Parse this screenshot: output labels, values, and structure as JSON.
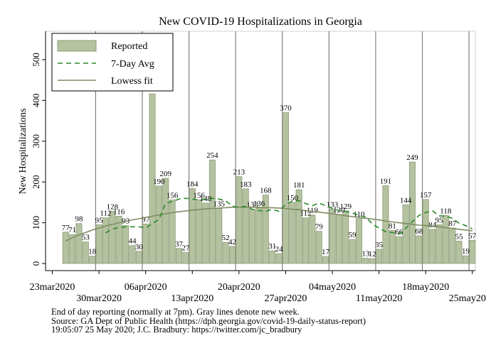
{
  "chart_data": {
    "type": "bar",
    "title": "New COVID-19 Hospitalizations in Georgia",
    "xlabel": "",
    "ylabel": "New Hospitalizations",
    "ylim": [
      0,
      560
    ],
    "yticks": [
      0,
      100,
      200,
      300,
      400,
      500
    ],
    "x_ticks": [
      {
        "date": "2020-03-23",
        "label": "23mar2020",
        "row": 0
      },
      {
        "date": "2020-03-30",
        "label": "30mar2020",
        "row": 1
      },
      {
        "date": "2020-04-06",
        "label": "06apr2020",
        "row": 0
      },
      {
        "date": "2020-04-13",
        "label": "13apr2020",
        "row": 1
      },
      {
        "date": "2020-04-20",
        "label": "20apr2020",
        "row": 0
      },
      {
        "date": "2020-04-27",
        "label": "27apr2020",
        "row": 1
      },
      {
        "date": "2020-05-04",
        "label": "04may2020",
        "row": 0
      },
      {
        "date": "2020-05-11",
        "label": "11may2020",
        "row": 1
      },
      {
        "date": "2020-05-18",
        "label": "18may2020",
        "row": 0
      },
      {
        "date": "2020-05-25",
        "label": "25may2020",
        "row": 1
      }
    ],
    "legend": {
      "position": "top-left",
      "entries": [
        "Reported",
        "7-Day Avg",
        "Lowess fit"
      ]
    },
    "colors": {
      "bar_fill": "#b5c2a0",
      "bar_stroke": "#8d9c78",
      "avg_line": "#2a8a2a",
      "lowess_line": "#7f8c62",
      "week_line": "#808080"
    },
    "week_lines": [
      "2020-03-30",
      "2020-04-06",
      "2020-04-13",
      "2020-04-20",
      "2020-04-27",
      "2020-05-04",
      "2020-05-11",
      "2020-05-18",
      "2020-05-25"
    ],
    "dates": [
      "2020-03-25",
      "2020-03-26",
      "2020-03-27",
      "2020-03-28",
      "2020-03-29",
      "2020-03-30",
      "2020-03-31",
      "2020-04-01",
      "2020-04-02",
      "2020-04-03",
      "2020-04-04",
      "2020-04-05",
      "2020-04-06",
      "2020-04-07",
      "2020-04-08",
      "2020-04-09",
      "2020-04-10",
      "2020-04-11",
      "2020-04-12",
      "2020-04-13",
      "2020-04-14",
      "2020-04-15",
      "2020-04-16",
      "2020-04-17",
      "2020-04-18",
      "2020-04-19",
      "2020-04-20",
      "2020-04-21",
      "2020-04-22",
      "2020-04-23",
      "2020-04-24",
      "2020-04-25",
      "2020-04-26",
      "2020-04-27",
      "2020-04-28",
      "2020-04-29",
      "2020-04-30",
      "2020-05-01",
      "2020-05-02",
      "2020-05-03",
      "2020-05-04",
      "2020-05-05",
      "2020-05-06",
      "2020-05-07",
      "2020-05-08",
      "2020-05-09",
      "2020-05-10",
      "2020-05-11",
      "2020-05-12",
      "2020-05-13",
      "2020-05-14",
      "2020-05-15",
      "2020-05-16",
      "2020-05-17",
      "2020-05-18",
      "2020-05-19",
      "2020-05-20",
      "2020-05-21",
      "2020-05-22",
      "2020-05-23",
      "2020-05-24",
      "2020-05-25"
    ],
    "series": [
      {
        "name": "Reported",
        "values": [
          77,
          71,
          98,
          53,
          18,
          95,
          112,
          128,
          116,
          93,
          44,
          30,
          97,
          416,
          190,
          209,
          156,
          37,
          27,
          184,
          156,
          148,
          254,
          135,
          52,
          42,
          213,
          183,
          133,
          136,
          168,
          31,
          24,
          370,
          150,
          181,
          112,
          119,
          79,
          17,
          133,
          120,
          129,
          59,
          110,
          13,
          12,
          35,
          191,
          81,
          66,
          144,
          249,
          68,
          157,
          84,
          95,
          118,
          87,
          55,
          19,
          57
        ],
        "labels": [
          "77",
          "71",
          "98",
          "53",
          "18",
          "95",
          "112",
          "128",
          "116",
          "93",
          "44",
          "30",
          "97",
          "",
          "190",
          "209",
          "156",
          "37",
          "27",
          "184",
          "156",
          "148",
          "254",
          "135",
          "52",
          "42",
          "213",
          "183",
          "133",
          "136",
          "168",
          "31",
          "24",
          "370",
          "150",
          "181",
          "112",
          "119",
          "79",
          "17",
          "133",
          "120",
          "129",
          "59",
          "110",
          "13",
          "12",
          "35",
          "191",
          "81",
          "66",
          "144",
          "249",
          "68",
          "157",
          "84",
          "95",
          "118",
          "87",
          "55",
          "19",
          "57"
        ]
      },
      {
        "name": "7-Day Avg",
        "values": [
          null,
          null,
          null,
          null,
          null,
          null,
          75,
          85,
          88,
          90,
          90,
          90,
          87,
          98,
          108,
          148,
          152,
          158,
          160,
          158,
          156,
          158,
          160,
          158,
          154,
          141,
          138,
          140,
          133,
          130,
          128,
          133,
          128,
          145,
          153,
          154,
          147,
          142,
          148,
          142,
          135,
          130,
          128,
          124,
          118,
          114,
          97,
          87,
          78,
          76,
          72,
          86,
          103,
          118,
          125,
          130,
          117,
          116,
          111,
          99,
          93,
          85
        ]
      },
      {
        "name": "Lowess fit",
        "values": [
          55,
          63,
          70,
          76,
          82,
          87,
          92,
          96,
          100,
          104,
          107,
          110,
          113,
          116,
          119,
          122,
          125,
          127,
          129,
          131,
          132,
          134,
          135,
          136,
          137,
          138,
          138,
          138,
          138,
          138,
          137,
          137,
          136,
          135,
          133,
          132,
          130,
          128,
          126,
          124,
          122,
          120,
          117,
          115,
          113,
          111,
          109,
          107,
          104,
          102,
          100,
          98,
          96,
          94,
          93,
          91,
          90,
          88,
          86,
          84,
          82,
          80
        ]
      }
    ]
  },
  "notes": {
    "line1": "End of day reporting (normally at 7pm). Gray lines denote new week.",
    "line2": "Source: GA Dept of Public Health (https://dph.georgia.gov/covid-19-daily-status-report)",
    "line3": "19:05:07  25 May 2020; J.C. Bradbury: https://twitter.com/jc_bradbury"
  }
}
